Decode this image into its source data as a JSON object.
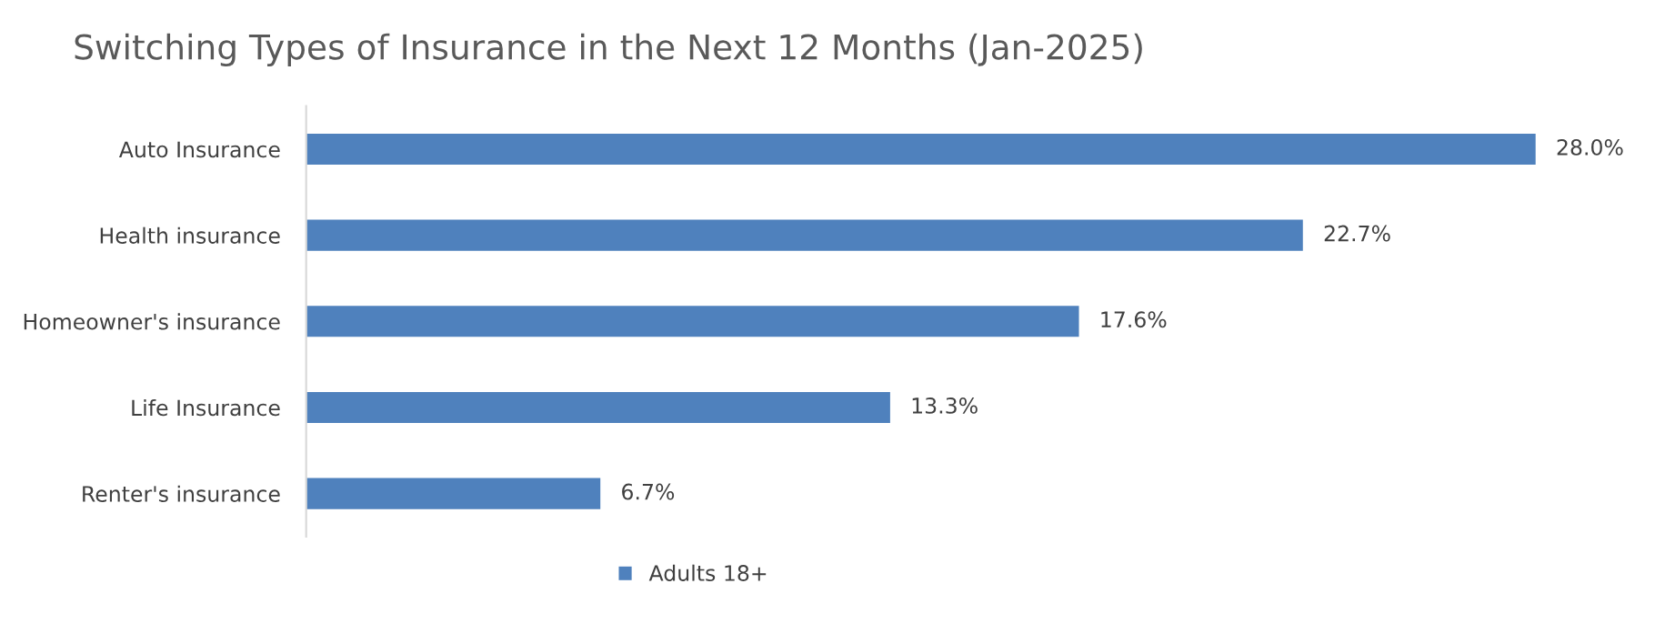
{
  "chart_data": {
    "type": "bar",
    "orientation": "horizontal",
    "title": "Switching Types of Insurance in the Next 12 Months (Jan-2025)",
    "categories": [
      "Auto Insurance",
      "Health insurance",
      "Homeowner's insurance",
      "Life Insurance",
      "Renter's insurance"
    ],
    "series": [
      {
        "name": "Adults 18+",
        "color": "#4f81bd",
        "values": [
          28.0,
          22.7,
          17.6,
          13.3,
          6.7
        ],
        "value_labels": [
          "28.0%",
          "22.7%",
          "17.6%",
          "13.3%",
          "6.7%"
        ]
      }
    ],
    "tick_labels": "y",
    "grid": false,
    "legend": "bottom"
  }
}
